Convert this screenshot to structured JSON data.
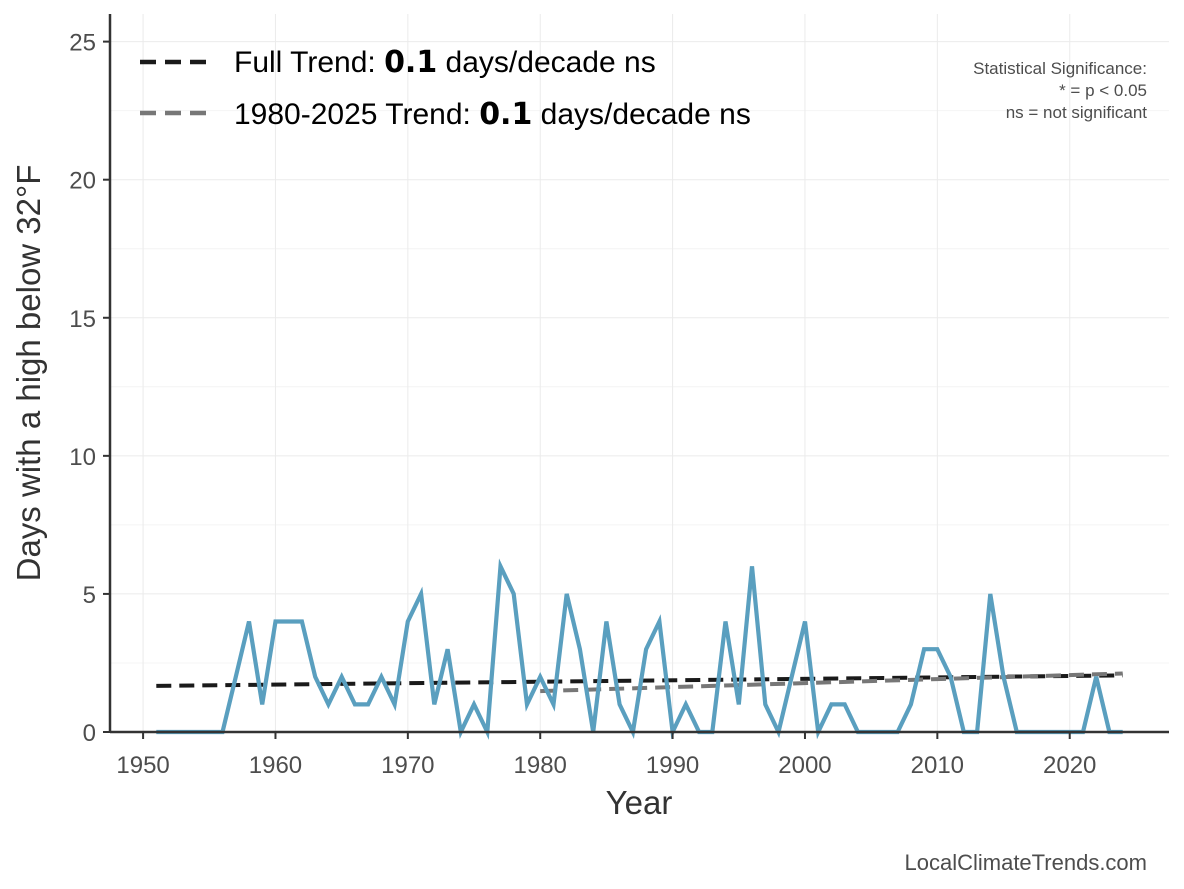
{
  "chart_data": {
    "type": "line",
    "xlabel": "Year",
    "ylabel": "Days with a high below 32°F",
    "xlim": [
      1947.5,
      2027.5
    ],
    "ylim": [
      0,
      26
    ],
    "xticks": [
      1950,
      1960,
      1970,
      1980,
      1990,
      2000,
      2010,
      2020
    ],
    "yticks": [
      0,
      5,
      10,
      15,
      20,
      25
    ],
    "grid": true,
    "legend_position": "top-left",
    "series": [
      {
        "color": "#5a9fbf",
        "x": [
          1951,
          1952,
          1953,
          1954,
          1955,
          1956,
          1957,
          1958,
          1959,
          1960,
          1961,
          1962,
          1963,
          1964,
          1965,
          1966,
          1967,
          1968,
          1969,
          1970,
          1971,
          1972,
          1973,
          1974,
          1975,
          1976,
          1977,
          1978,
          1979,
          1980,
          1981,
          1982,
          1983,
          1984,
          1985,
          1986,
          1987,
          1988,
          1989,
          1990,
          1991,
          1992,
          1993,
          1994,
          1995,
          1996,
          1997,
          1998,
          1999,
          2000,
          2001,
          2002,
          2003,
          2004,
          2005,
          2006,
          2007,
          2008,
          2009,
          2010,
          2011,
          2012,
          2013,
          2014,
          2015,
          2016,
          2017,
          2018,
          2019,
          2020,
          2021,
          2022,
          2023,
          2024
        ],
        "values": [
          0,
          0,
          0,
          0,
          0,
          0,
          2,
          4,
          1,
          4,
          4,
          4,
          2,
          1,
          2,
          1,
          1,
          2,
          1,
          4,
          5,
          1,
          3,
          0,
          1,
          0,
          6,
          5,
          1,
          2,
          1,
          5,
          3,
          0,
          4,
          1,
          0,
          3,
          4,
          0,
          1,
          0,
          0,
          4,
          1,
          6,
          1,
          0,
          2,
          4,
          0,
          1,
          1,
          0,
          0,
          0,
          0,
          1,
          3,
          3,
          2,
          0,
          0,
          5,
          2,
          0,
          0,
          0,
          0,
          0,
          0,
          2,
          0,
          0
        ]
      },
      {
        "name": "Full Trend",
        "color": "#1a1a1a",
        "style": "dashed",
        "x": [
          1951,
          2024
        ],
        "values": [
          1.67,
          2.05
        ]
      },
      {
        "name": "1980-2025 Trend",
        "color": "#777777",
        "style": "dashed",
        "x": [
          1980,
          2024
        ],
        "values": [
          1.48,
          2.12
        ]
      }
    ],
    "legend": [
      {
        "prefix": "Full Trend: ",
        "value": "0.1",
        "suffix": " days/decade ns"
      },
      {
        "prefix": "1980-2025 Trend: ",
        "value": "0.1",
        "suffix": " days/decade ns"
      }
    ],
    "annotation": {
      "title": "Statistical Significance:",
      "line1": "* = p < 0.05",
      "line2": "ns = not significant"
    }
  },
  "credit": "LocalClimateTrends.com"
}
